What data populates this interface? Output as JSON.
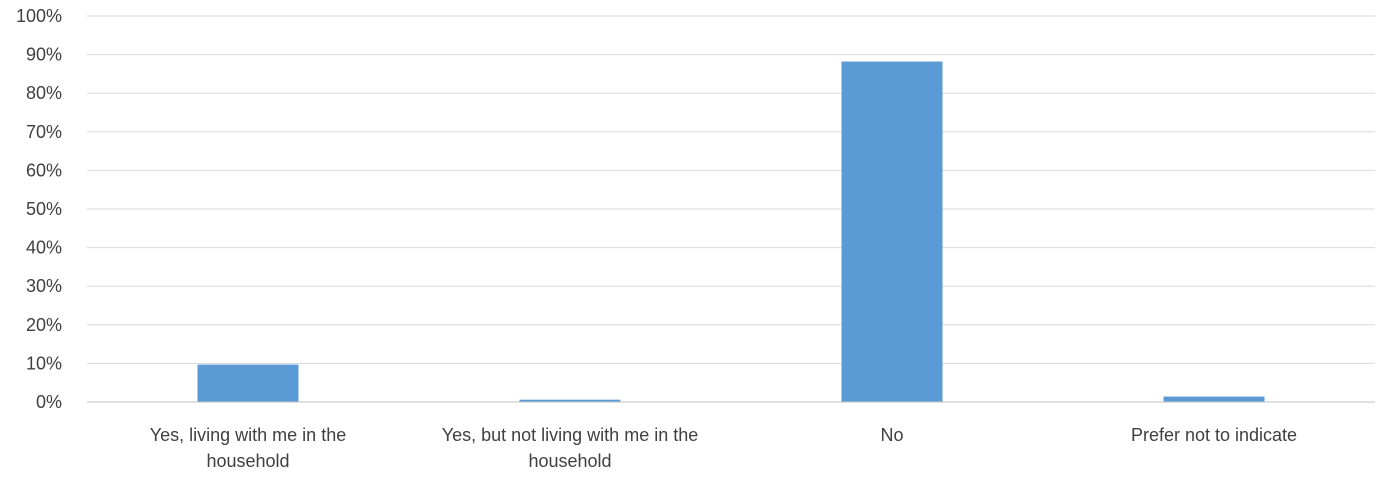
{
  "chart_data": {
    "type": "bar",
    "categories": [
      [
        "Yes, living with me in the",
        "household"
      ],
      [
        "Yes, but not living with me in the",
        "household"
      ],
      [
        "No"
      ],
      [
        "Prefer not to indicate"
      ]
    ],
    "values": [
      9.7,
      0.6,
      88.2,
      1.4
    ],
    "ylim": [
      0,
      100
    ],
    "yticks": [
      "0%",
      "10%",
      "20%",
      "30%",
      "40%",
      "50%",
      "60%",
      "70%",
      "80%",
      "90%",
      "100%"
    ],
    "grid": true,
    "colors": {
      "bar": "#5b9bd5",
      "grid": "#d9d9d9",
      "axis": "#bfbfbf",
      "text": "#404040"
    }
  }
}
